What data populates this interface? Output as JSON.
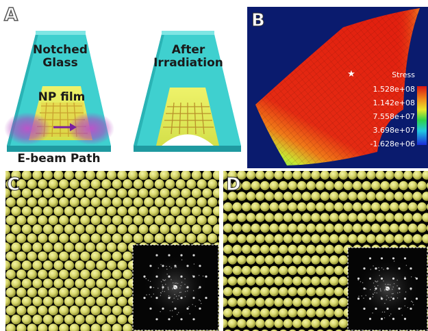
{
  "panel_a": {
    "label": "A",
    "left_title_1": "Notched",
    "left_title_2": "Glass",
    "film_label": "NP film",
    "ebeam_label": "E-beam Path",
    "right_title_1": "After",
    "right_title_2": "Irradiation"
  },
  "panel_b": {
    "label": "B",
    "legend_title": "Stress",
    "legend_values": [
      "1.528e+08",
      "1.142e+08",
      "7.558e+07",
      "3.698e+07",
      "-1.628e+06"
    ]
  },
  "panel_c": {
    "label": "C"
  },
  "panel_d": {
    "label": "D"
  }
}
